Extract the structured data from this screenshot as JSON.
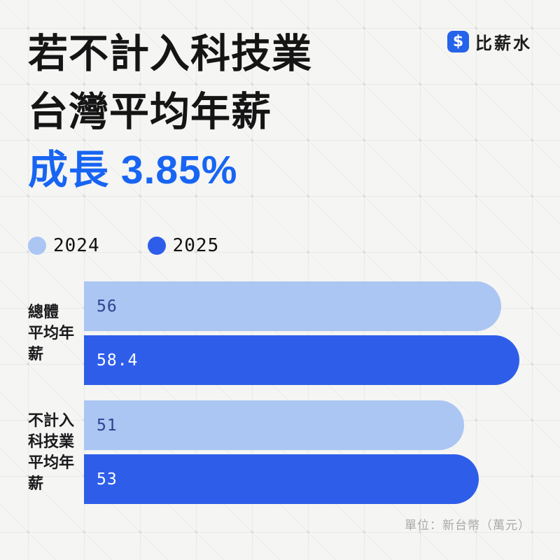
{
  "header": {
    "title_line1": "若不計入科技業",
    "title_line2": "台灣平均年薪",
    "title_highlight": "成長 3.85%",
    "highlight_color": "#1765f2"
  },
  "brand": {
    "name": "比薪水",
    "icon_glyph": "$",
    "icon_color": "#2563eb"
  },
  "legend": {
    "items": [
      {
        "label": "2024",
        "color": "#abc6f3"
      },
      {
        "label": "2025",
        "color": "#2e5ee9"
      }
    ]
  },
  "chart_data": {
    "type": "bar",
    "orientation": "horizontal",
    "categories": [
      "總體平均年薪",
      "不計入科技業平均年薪"
    ],
    "series": [
      {
        "name": "2024",
        "color": "#abc6f3",
        "values": [
          56,
          51
        ]
      },
      {
        "name": "2025",
        "color": "#2e5ee9",
        "values": [
          58.4,
          53
        ]
      }
    ],
    "value_axis_max": 58.4,
    "value_label_color_on_light": "#2a4590",
    "value_label_color_on_dark": "#ffffff",
    "unit_note": "單位：新台幣（萬元）",
    "legend_position": "top-left",
    "grid": false
  },
  "chart": {
    "groups": [
      {
        "label_lines": [
          "總體",
          "平均年薪",
          ""
        ]
      },
      {
        "label_lines": [
          "不計入",
          "科技業",
          "平均年薪"
        ]
      }
    ]
  }
}
